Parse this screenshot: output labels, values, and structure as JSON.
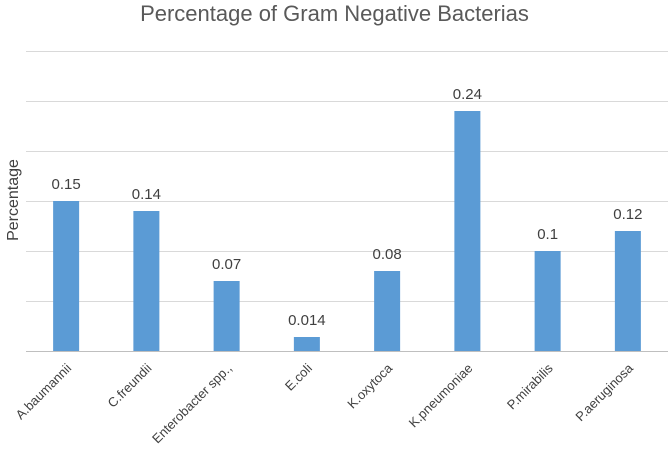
{
  "chart_data": {
    "type": "bar",
    "title": "Percentage of Gram Negative Bacterias",
    "xlabel": "",
    "ylabel": "Percentage",
    "categories": [
      "A.baumannii",
      "C.freundii",
      "Enterobacter spp.,",
      "E.coli",
      "K.oxytoca",
      "K.pneumoniae",
      "P.mirabilis",
      "P.aeruginosa"
    ],
    "values": [
      0.15,
      0.14,
      0.07,
      0.014,
      0.08,
      0.24,
      0.1,
      0.12
    ],
    "data_labels": [
      "0.15",
      "0.14",
      "0.07",
      "0.014",
      "0.08",
      "0.24",
      "0.1",
      "0.12"
    ],
    "ylim": [
      0,
      0.3
    ],
    "gridlines": [
      0,
      0.05,
      0.1,
      0.15,
      0.2,
      0.25,
      0.3
    ],
    "grid": true,
    "color": "#5b9bd5"
  }
}
